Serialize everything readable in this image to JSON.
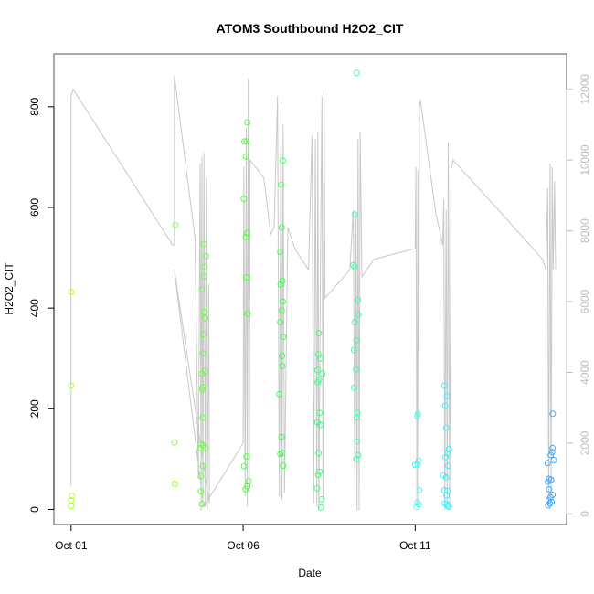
{
  "chart_data": {
    "type": "scatter",
    "title": "ATOM3 Southbound H2O2_CIT",
    "xlabel": "Date",
    "ylabel": "H2O2_CIT",
    "x_ticks": [
      "Oct 01",
      "Oct 06",
      "Oct 11"
    ],
    "x_tick_values": [
      1,
      6,
      11
    ],
    "xlim": [
      0.5,
      15.4
    ],
    "ylim": [
      -30,
      905
    ],
    "y_ticks": [
      0,
      200,
      400,
      600,
      800
    ],
    "secondary_axis": {
      "label": "",
      "ylim": [
        -300,
        13000
      ],
      "ticks": [
        0,
        2000,
        4000,
        6000,
        8000,
        10000,
        12000
      ],
      "color": "#bdbdbd"
    },
    "grid": false,
    "legend": "none",
    "colors": {
      "line": "#c8c8c8",
      "frame": "#555555"
    },
    "series": [
      {
        "type": "points",
        "points": [
          {
            "x": 1.0,
            "y": 432,
            "c": "#b0ff40"
          },
          {
            "x": 1.0,
            "y": 246,
            "c": "#b0ff40"
          },
          {
            "x": 1.02,
            "y": 27,
            "c": "#b0ff40"
          },
          {
            "x": 1.0,
            "y": 18,
            "c": "#b0ff40"
          },
          {
            "x": 1.0,
            "y": 7,
            "c": "#b0ff40"
          },
          {
            "x": 4.03,
            "y": 565,
            "c": "#8cff40"
          },
          {
            "x": 4.0,
            "y": 133,
            "c": "#8cff40"
          },
          {
            "x": 4.02,
            "y": 51,
            "c": "#8cff40"
          },
          {
            "x": 4.85,
            "y": 527,
            "c": "#6cff40"
          },
          {
            "x": 4.92,
            "y": 503,
            "c": "#6cff40"
          },
          {
            "x": 4.88,
            "y": 482,
            "c": "#6cff40"
          },
          {
            "x": 4.86,
            "y": 463,
            "c": "#6cff40"
          },
          {
            "x": 4.8,
            "y": 437,
            "c": "#6cff40"
          },
          {
            "x": 4.87,
            "y": 392,
            "c": "#6cff40"
          },
          {
            "x": 4.9,
            "y": 380,
            "c": "#6cff40"
          },
          {
            "x": 4.85,
            "y": 348,
            "c": "#6cff40"
          },
          {
            "x": 4.83,
            "y": 310,
            "c": "#6cff40"
          },
          {
            "x": 4.9,
            "y": 275,
            "c": "#6cff40"
          },
          {
            "x": 4.8,
            "y": 270,
            "c": "#6cff40"
          },
          {
            "x": 4.83,
            "y": 243,
            "c": "#6cff40"
          },
          {
            "x": 4.81,
            "y": 238,
            "c": "#6cff40"
          },
          {
            "x": 4.82,
            "y": 182,
            "c": "#6cff40"
          },
          {
            "x": 4.78,
            "y": 130,
            "c": "#6cff40"
          },
          {
            "x": 4.84,
            "y": 127,
            "c": "#6cff40"
          },
          {
            "x": 4.9,
            "y": 122,
            "c": "#6cff40"
          },
          {
            "x": 4.76,
            "y": 122,
            "c": "#6cff40"
          },
          {
            "x": 4.83,
            "y": 86,
            "c": "#6cff40"
          },
          {
            "x": 4.78,
            "y": 66,
            "c": "#6cff40"
          },
          {
            "x": 4.77,
            "y": 36,
            "c": "#6cff40"
          },
          {
            "x": 4.8,
            "y": 11,
            "c": "#6cff40"
          },
          {
            "x": 6.12,
            "y": 769,
            "c": "#55ff40"
          },
          {
            "x": 6.04,
            "y": 731,
            "c": "#55ff40"
          },
          {
            "x": 6.1,
            "y": 731,
            "c": "#55ff40"
          },
          {
            "x": 6.08,
            "y": 701,
            "c": "#55ff40"
          },
          {
            "x": 6.02,
            "y": 617,
            "c": "#55ff40"
          },
          {
            "x": 6.12,
            "y": 549,
            "c": "#55ff40"
          },
          {
            "x": 6.08,
            "y": 541,
            "c": "#55ff40"
          },
          {
            "x": 6.09,
            "y": 461,
            "c": "#55ff40"
          },
          {
            "x": 6.13,
            "y": 389,
            "c": "#55ff40"
          },
          {
            "x": 6.1,
            "y": 105,
            "c": "#55ff40"
          },
          {
            "x": 6.03,
            "y": 86,
            "c": "#55ff40"
          },
          {
            "x": 6.16,
            "y": 56,
            "c": "#55ff40"
          },
          {
            "x": 6.12,
            "y": 46,
            "c": "#55ff40"
          },
          {
            "x": 6.07,
            "y": 40,
            "c": "#55ff40"
          },
          {
            "x": 7.15,
            "y": 693,
            "c": "#44ff55"
          },
          {
            "x": 7.1,
            "y": 645,
            "c": "#44ff55"
          },
          {
            "x": 7.12,
            "y": 560,
            "c": "#44ff55"
          },
          {
            "x": 7.08,
            "y": 512,
            "c": "#44ff55"
          },
          {
            "x": 7.14,
            "y": 454,
            "c": "#44ff55"
          },
          {
            "x": 7.09,
            "y": 447,
            "c": "#44ff55"
          },
          {
            "x": 7.15,
            "y": 413,
            "c": "#44ff55"
          },
          {
            "x": 7.12,
            "y": 395,
            "c": "#44ff55"
          },
          {
            "x": 7.08,
            "y": 372,
            "c": "#44ff55"
          },
          {
            "x": 7.16,
            "y": 343,
            "c": "#44ff55"
          },
          {
            "x": 7.13,
            "y": 305,
            "c": "#44ff55"
          },
          {
            "x": 7.14,
            "y": 285,
            "c": "#44ff55"
          },
          {
            "x": 7.05,
            "y": 229,
            "c": "#44ff55"
          },
          {
            "x": 7.11,
            "y": 144,
            "c": "#44ff55"
          },
          {
            "x": 7.14,
            "y": 112,
            "c": "#44ff55"
          },
          {
            "x": 7.08,
            "y": 110,
            "c": "#44ff55"
          },
          {
            "x": 7.16,
            "y": 87,
            "c": "#44ff55"
          },
          {
            "x": 8.2,
            "y": 350,
            "c": "#40ff80"
          },
          {
            "x": 8.18,
            "y": 308,
            "c": "#40ff80"
          },
          {
            "x": 8.24,
            "y": 300,
            "c": "#40ff80"
          },
          {
            "x": 8.16,
            "y": 277,
            "c": "#40ff80"
          },
          {
            "x": 8.3,
            "y": 270,
            "c": "#40ff80"
          },
          {
            "x": 8.2,
            "y": 258,
            "c": "#40ff80"
          },
          {
            "x": 8.17,
            "y": 253,
            "c": "#40ff80"
          },
          {
            "x": 8.22,
            "y": 192,
            "c": "#40ff80"
          },
          {
            "x": 8.16,
            "y": 173,
            "c": "#40ff80"
          },
          {
            "x": 8.24,
            "y": 168,
            "c": "#40ff80"
          },
          {
            "x": 8.19,
            "y": 112,
            "c": "#40ff80"
          },
          {
            "x": 8.22,
            "y": 75,
            "c": "#40ff80"
          },
          {
            "x": 8.18,
            "y": 69,
            "c": "#40ff80"
          },
          {
            "x": 8.15,
            "y": 42,
            "c": "#40ff80"
          },
          {
            "x": 8.28,
            "y": 20,
            "c": "#40ff80"
          },
          {
            "x": 8.26,
            "y": 4,
            "c": "#40ff80"
          },
          {
            "x": 9.3,
            "y": 867,
            "c": "#40ffaa"
          },
          {
            "x": 9.25,
            "y": 586,
            "c": "#40ffaa"
          },
          {
            "x": 9.2,
            "y": 485,
            "c": "#40ffaa"
          },
          {
            "x": 9.24,
            "y": 482,
            "c": "#40ffaa"
          },
          {
            "x": 9.33,
            "y": 416,
            "c": "#40ffaa"
          },
          {
            "x": 9.35,
            "y": 387,
            "c": "#40ffaa"
          },
          {
            "x": 9.24,
            "y": 372,
            "c": "#40ffaa"
          },
          {
            "x": 9.29,
            "y": 336,
            "c": "#40ffaa"
          },
          {
            "x": 9.22,
            "y": 317,
            "c": "#40ffaa"
          },
          {
            "x": 9.28,
            "y": 278,
            "c": "#40ffaa"
          },
          {
            "x": 9.22,
            "y": 242,
            "c": "#40ffaa"
          },
          {
            "x": 9.32,
            "y": 192,
            "c": "#40ffaa"
          },
          {
            "x": 9.3,
            "y": 183,
            "c": "#40ffaa"
          },
          {
            "x": 9.31,
            "y": 135,
            "c": "#40ffaa"
          },
          {
            "x": 9.34,
            "y": 108,
            "c": "#40ffaa"
          },
          {
            "x": 9.29,
            "y": 100,
            "c": "#40ffaa"
          },
          {
            "x": 11.08,
            "y": 190,
            "c": "#40ffee"
          },
          {
            "x": 11.06,
            "y": 185,
            "c": "#40ffee"
          },
          {
            "x": 11.1,
            "y": 97,
            "c": "#40ffee"
          },
          {
            "x": 11.0,
            "y": 89,
            "c": "#40ffee"
          },
          {
            "x": 11.07,
            "y": 89,
            "c": "#40ffee"
          },
          {
            "x": 11.12,
            "y": 38,
            "c": "#40ffee"
          },
          {
            "x": 11.06,
            "y": 14,
            "c": "#40ffee"
          },
          {
            "x": 11.1,
            "y": 10,
            "c": "#40ffee"
          },
          {
            "x": 11.04,
            "y": 5,
            "c": "#40ffee"
          },
          {
            "x": 11.85,
            "y": 246,
            "c": "#40eeff"
          },
          {
            "x": 11.92,
            "y": 225,
            "c": "#40eeff"
          },
          {
            "x": 11.87,
            "y": 206,
            "c": "#40eeff"
          },
          {
            "x": 11.9,
            "y": 162,
            "c": "#40eeff"
          },
          {
            "x": 11.98,
            "y": 120,
            "c": "#40eeff"
          },
          {
            "x": 11.95,
            "y": 111,
            "c": "#40eeff"
          },
          {
            "x": 11.88,
            "y": 104,
            "c": "#40eeff"
          },
          {
            "x": 11.96,
            "y": 87,
            "c": "#40eeff"
          },
          {
            "x": 11.82,
            "y": 68,
            "c": "#40eeff"
          },
          {
            "x": 11.9,
            "y": 64,
            "c": "#40eeff"
          },
          {
            "x": 11.85,
            "y": 38,
            "c": "#40eeff"
          },
          {
            "x": 11.94,
            "y": 37,
            "c": "#40eeff"
          },
          {
            "x": 11.91,
            "y": 28,
            "c": "#40eeff"
          },
          {
            "x": 11.86,
            "y": 12,
            "c": "#40eeff"
          },
          {
            "x": 11.92,
            "y": 10,
            "c": "#40eeff"
          },
          {
            "x": 11.95,
            "y": 7,
            "c": "#40eeff"
          },
          {
            "x": 11.98,
            "y": 5,
            "c": "#40eeff"
          },
          {
            "x": 15.0,
            "y": 190,
            "c": "#40aaff"
          },
          {
            "x": 14.99,
            "y": 122,
            "c": "#40aaff"
          },
          {
            "x": 14.98,
            "y": 114,
            "c": "#40aaff"
          },
          {
            "x": 14.94,
            "y": 108,
            "c": "#40aaff"
          },
          {
            "x": 15.03,
            "y": 98,
            "c": "#40aaff"
          },
          {
            "x": 14.85,
            "y": 92,
            "c": "#40aaff"
          },
          {
            "x": 14.89,
            "y": 61,
            "c": "#40aaff"
          },
          {
            "x": 14.95,
            "y": 59,
            "c": "#40aaff"
          },
          {
            "x": 14.86,
            "y": 55,
            "c": "#40aaff"
          },
          {
            "x": 14.89,
            "y": 40,
            "c": "#40aaff"
          },
          {
            "x": 14.99,
            "y": 29,
            "c": "#40aaff"
          },
          {
            "x": 14.93,
            "y": 24,
            "c": "#40aaff"
          },
          {
            "x": 14.88,
            "y": 18,
            "c": "#40aaff"
          },
          {
            "x": 14.96,
            "y": 15,
            "c": "#40aaff"
          },
          {
            "x": 14.91,
            "y": 12,
            "c": "#40aaff"
          },
          {
            "x": 14.87,
            "y": 8,
            "c": "#40aaff"
          }
        ]
      },
      {
        "type": "line",
        "axis": "secondary",
        "points": [
          [
            1.0,
            800
          ],
          [
            1.0,
            11800
          ],
          [
            1.06,
            12000
          ],
          [
            3.95,
            7600
          ],
          [
            4.0,
            7600
          ],
          [
            4.0,
            12400
          ],
          [
            4.6,
            7800
          ],
          [
            4.7,
            1000
          ],
          [
            4.75,
            9900
          ],
          [
            4.78,
            100
          ],
          [
            4.8,
            10100
          ],
          [
            4.83,
            200
          ],
          [
            4.86,
            10200
          ],
          [
            4.9,
            200
          ],
          [
            4.93,
            9500
          ],
          [
            4.96,
            100
          ],
          [
            5.0,
            6500
          ],
          [
            5.02,
            300
          ],
          [
            4.0,
            6900
          ],
          [
            4.85,
            200
          ],
          [
            6.0,
            2000
          ],
          [
            6.02,
            9800
          ],
          [
            6.06,
            500
          ],
          [
            6.09,
            10900
          ],
          [
            6.12,
            200
          ],
          [
            6.15,
            12300
          ],
          [
            6.18,
            600
          ],
          [
            6.2,
            10000
          ],
          [
            6.6,
            9500
          ],
          [
            6.8,
            7900
          ],
          [
            6.9,
            8100
          ],
          [
            7.0,
            11800
          ],
          [
            7.05,
            500
          ],
          [
            7.1,
            11500
          ],
          [
            7.13,
            400
          ],
          [
            7.16,
            11000
          ],
          [
            7.2,
            600
          ],
          [
            7.3,
            8100
          ],
          [
            7.5,
            7500
          ],
          [
            7.9,
            6900
          ],
          [
            8.0,
            10700
          ],
          [
            8.05,
            300
          ],
          [
            8.1,
            10600
          ],
          [
            8.14,
            200
          ],
          [
            8.17,
            10800
          ],
          [
            8.2,
            100
          ],
          [
            8.25,
            7500
          ],
          [
            8.29,
            11800
          ],
          [
            8.32,
            400
          ],
          [
            8.35,
            12000
          ],
          [
            8.38,
            6100
          ],
          [
            9.1,
            6900
          ],
          [
            9.2,
            8600
          ],
          [
            9.25,
            200
          ],
          [
            9.28,
            8500
          ],
          [
            9.31,
            100
          ],
          [
            9.34,
            10600
          ],
          [
            9.37,
            100
          ],
          [
            9.4,
            10800
          ],
          [
            9.45,
            6700
          ],
          [
            9.8,
            7200
          ],
          [
            11.0,
            7500
          ],
          [
            11.02,
            9800
          ],
          [
            11.05,
            200
          ],
          [
            11.08,
            9700
          ],
          [
            11.1,
            200
          ],
          [
            11.12,
            11500
          ],
          [
            11.15,
            11700
          ],
          [
            11.6,
            8500
          ],
          [
            11.8,
            7600
          ],
          [
            11.83,
            8900
          ],
          [
            11.86,
            100
          ],
          [
            11.9,
            8600
          ],
          [
            11.93,
            300
          ],
          [
            11.96,
            10500
          ],
          [
            12.0,
            200
          ],
          [
            12.04,
            9700
          ],
          [
            12.1,
            10000
          ],
          [
            13.5,
            8500
          ],
          [
            14.7,
            7200
          ],
          [
            14.8,
            6900
          ],
          [
            14.85,
            9200
          ],
          [
            14.88,
            200
          ],
          [
            14.92,
            9900
          ],
          [
            14.95,
            500
          ],
          [
            14.98,
            9800
          ],
          [
            15.01,
            6900
          ],
          [
            15.05,
            9400
          ],
          [
            15.08,
            6900
          ]
        ]
      }
    ]
  }
}
